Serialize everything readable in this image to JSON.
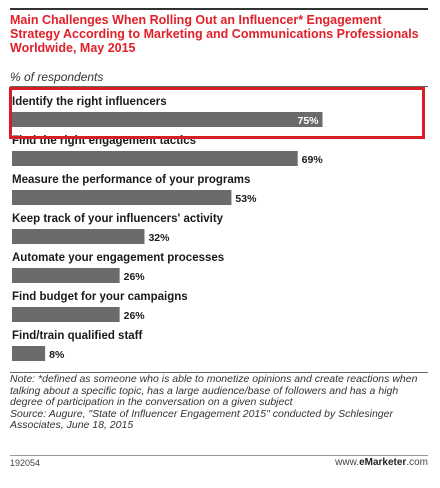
{
  "chart_data": {
    "type": "bar",
    "orientation": "horizontal",
    "title": "Main Challenges When Rolling Out an Influencer* Engagement Strategy According to Marketing and Communications Professionals Worldwide, May 2015",
    "subtitle": "% of respondents",
    "categories": [
      "Identify the right influencers",
      "Find the right engagement tactics",
      "Measure the performance of your programs",
      "Keep track of your influencers' activity",
      "Automate your engagement processes",
      "Find budget for your campaigns",
      "Find/train qualified staff"
    ],
    "values": [
      75,
      69,
      53,
      32,
      26,
      26,
      8
    ],
    "value_labels": [
      "75%",
      "69%",
      "53%",
      "32%",
      "26%",
      "26%",
      "8%"
    ],
    "xlim": [
      0,
      100
    ],
    "highlighted_category": "Identify the right influencers",
    "colors": {
      "bar": "#6b6b6b",
      "highlight_border": "#d81e24",
      "title": "#e0202a"
    }
  },
  "footer": {
    "note": "Note: *defined as someone who is able to monetize opinions and create reactions when talking about a specific topic, has a large audience/base of followers and has a high degree of participation in the conversation on a given subject",
    "source": "Source: Augure, \"State of Influencer Engagement 2015\" conducted by Schlesinger Associates, June 18, 2015",
    "chart_id": "192054",
    "brand_prefix": "www.",
    "brand_name": "eMarketer",
    "brand_suffix": ".com"
  }
}
